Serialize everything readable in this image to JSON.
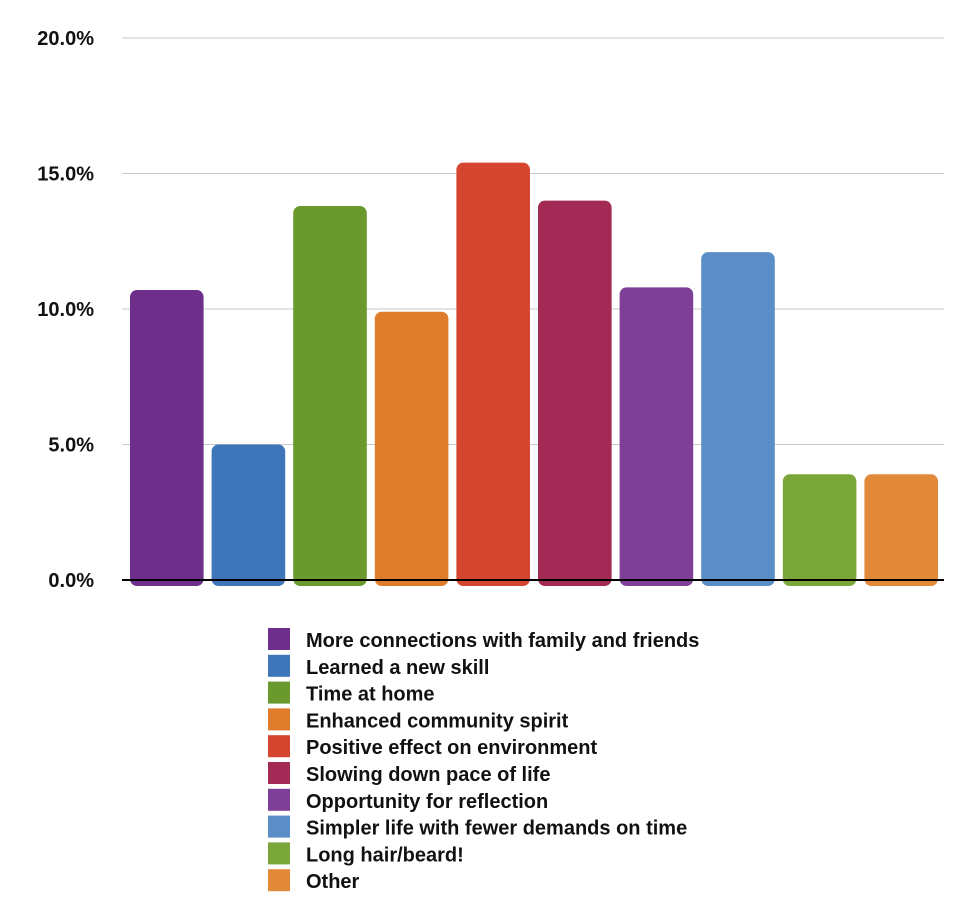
{
  "chart_data": {
    "type": "bar",
    "title": "",
    "xlabel": "",
    "ylabel": "",
    "ylim": [
      0,
      20
    ],
    "yticks": [
      {
        "value": 0,
        "label": "0.0%"
      },
      {
        "value": 5,
        "label": "5.0%"
      },
      {
        "value": 10,
        "label": "10.0%"
      },
      {
        "value": 15,
        "label": "15.0%"
      },
      {
        "value": 20,
        "label": "20.0%"
      }
    ],
    "grid": true,
    "legend_placement": "bottom",
    "categories": [
      "More connections with family and friends",
      "Learned a new skill",
      "Time at home",
      "Enhanced community spirit",
      "Positive effect on environment",
      "Slowing down pace of life",
      "Opportunity for reflection",
      "Simpler life with fewer demands on time",
      "Long hair/beard!",
      "Other"
    ],
    "values": [
      10.7,
      5.0,
      13.8,
      9.9,
      15.4,
      14.0,
      10.8,
      12.1,
      3.9,
      3.9
    ],
    "colors": [
      "#6e2f8c",
      "#3f76ba",
      "#6a9a2e",
      "#e07d2c",
      "#d4462f",
      "#a22a55",
      "#7e3f99",
      "#5b8ec6",
      "#7aa63a",
      "#e38a3a"
    ]
  }
}
